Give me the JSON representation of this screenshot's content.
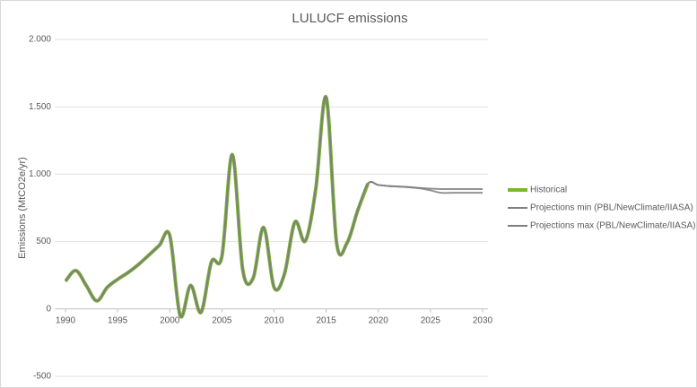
{
  "chart_data": {
    "type": "line",
    "title": "LULUCF emissions",
    "y_label": "Emissions (MtCO2e/yr)",
    "x": [
      1990,
      1991,
      1992,
      1993,
      1994,
      1995,
      1996,
      1997,
      1998,
      1999,
      2000,
      2001,
      2002,
      2003,
      2004,
      2005,
      2006,
      2007,
      2008,
      2009,
      2010,
      2011,
      2012,
      2013,
      2014,
      2015,
      2016,
      2017,
      2018,
      2019,
      2020,
      2021,
      2022,
      2023,
      2024,
      2025,
      2026,
      2027,
      2028,
      2029,
      2030
    ],
    "series": [
      {
        "name": "Historical",
        "color": "#7ab929",
        "width": 4,
        "values": [
          206,
          285,
          173,
          60,
          160,
          220,
          270,
          330,
          400,
          472,
          545,
          -50,
          175,
          -25,
          350,
          390,
          1145,
          290,
          230,
          605,
          160,
          260,
          645,
          505,
          890,
          1570,
          490,
          490,
          725,
          930,
          null,
          null,
          null,
          null,
          null,
          null,
          null,
          null,
          null,
          null,
          null
        ]
      },
      {
        "name": "Projections min (PBL/NewClimate/IIASA)",
        "color": "#7f7f7f",
        "width": 2,
        "values": [
          206,
          285,
          173,
          60,
          160,
          220,
          270,
          330,
          400,
          472,
          545,
          -50,
          175,
          -25,
          350,
          390,
          1145,
          290,
          230,
          605,
          160,
          260,
          645,
          505,
          890,
          1570,
          490,
          490,
          725,
          930,
          920,
          912,
          908,
          903,
          895,
          880,
          862,
          862,
          862,
          862,
          862
        ]
      },
      {
        "name": "Projections max (PBL/NewClimate/IIASA)",
        "color": "#7f7f7f",
        "width": 2,
        "values": [
          206,
          285,
          173,
          60,
          160,
          220,
          270,
          330,
          400,
          472,
          545,
          -50,
          175,
          -25,
          350,
          390,
          1145,
          290,
          230,
          605,
          160,
          260,
          645,
          505,
          890,
          1570,
          490,
          490,
          725,
          930,
          920,
          912,
          908,
          904,
          898,
          893,
          890,
          890,
          890,
          890,
          890
        ]
      }
    ],
    "xlim": [
      1990,
      2030
    ],
    "xticks": [
      1990,
      1995,
      2000,
      2005,
      2010,
      2015,
      2020,
      2025,
      2030
    ],
    "ylim": [
      -500,
      2000
    ],
    "yticks": [
      -500,
      {
        "value": 0,
        "label": "0"
      },
      500,
      {
        "value": 1000,
        "label": "1.000"
      },
      {
        "value": 1500,
        "label": "1.500"
      },
      {
        "value": 2000,
        "label": "2.000"
      }
    ],
    "grid": true,
    "legend": "right"
  }
}
